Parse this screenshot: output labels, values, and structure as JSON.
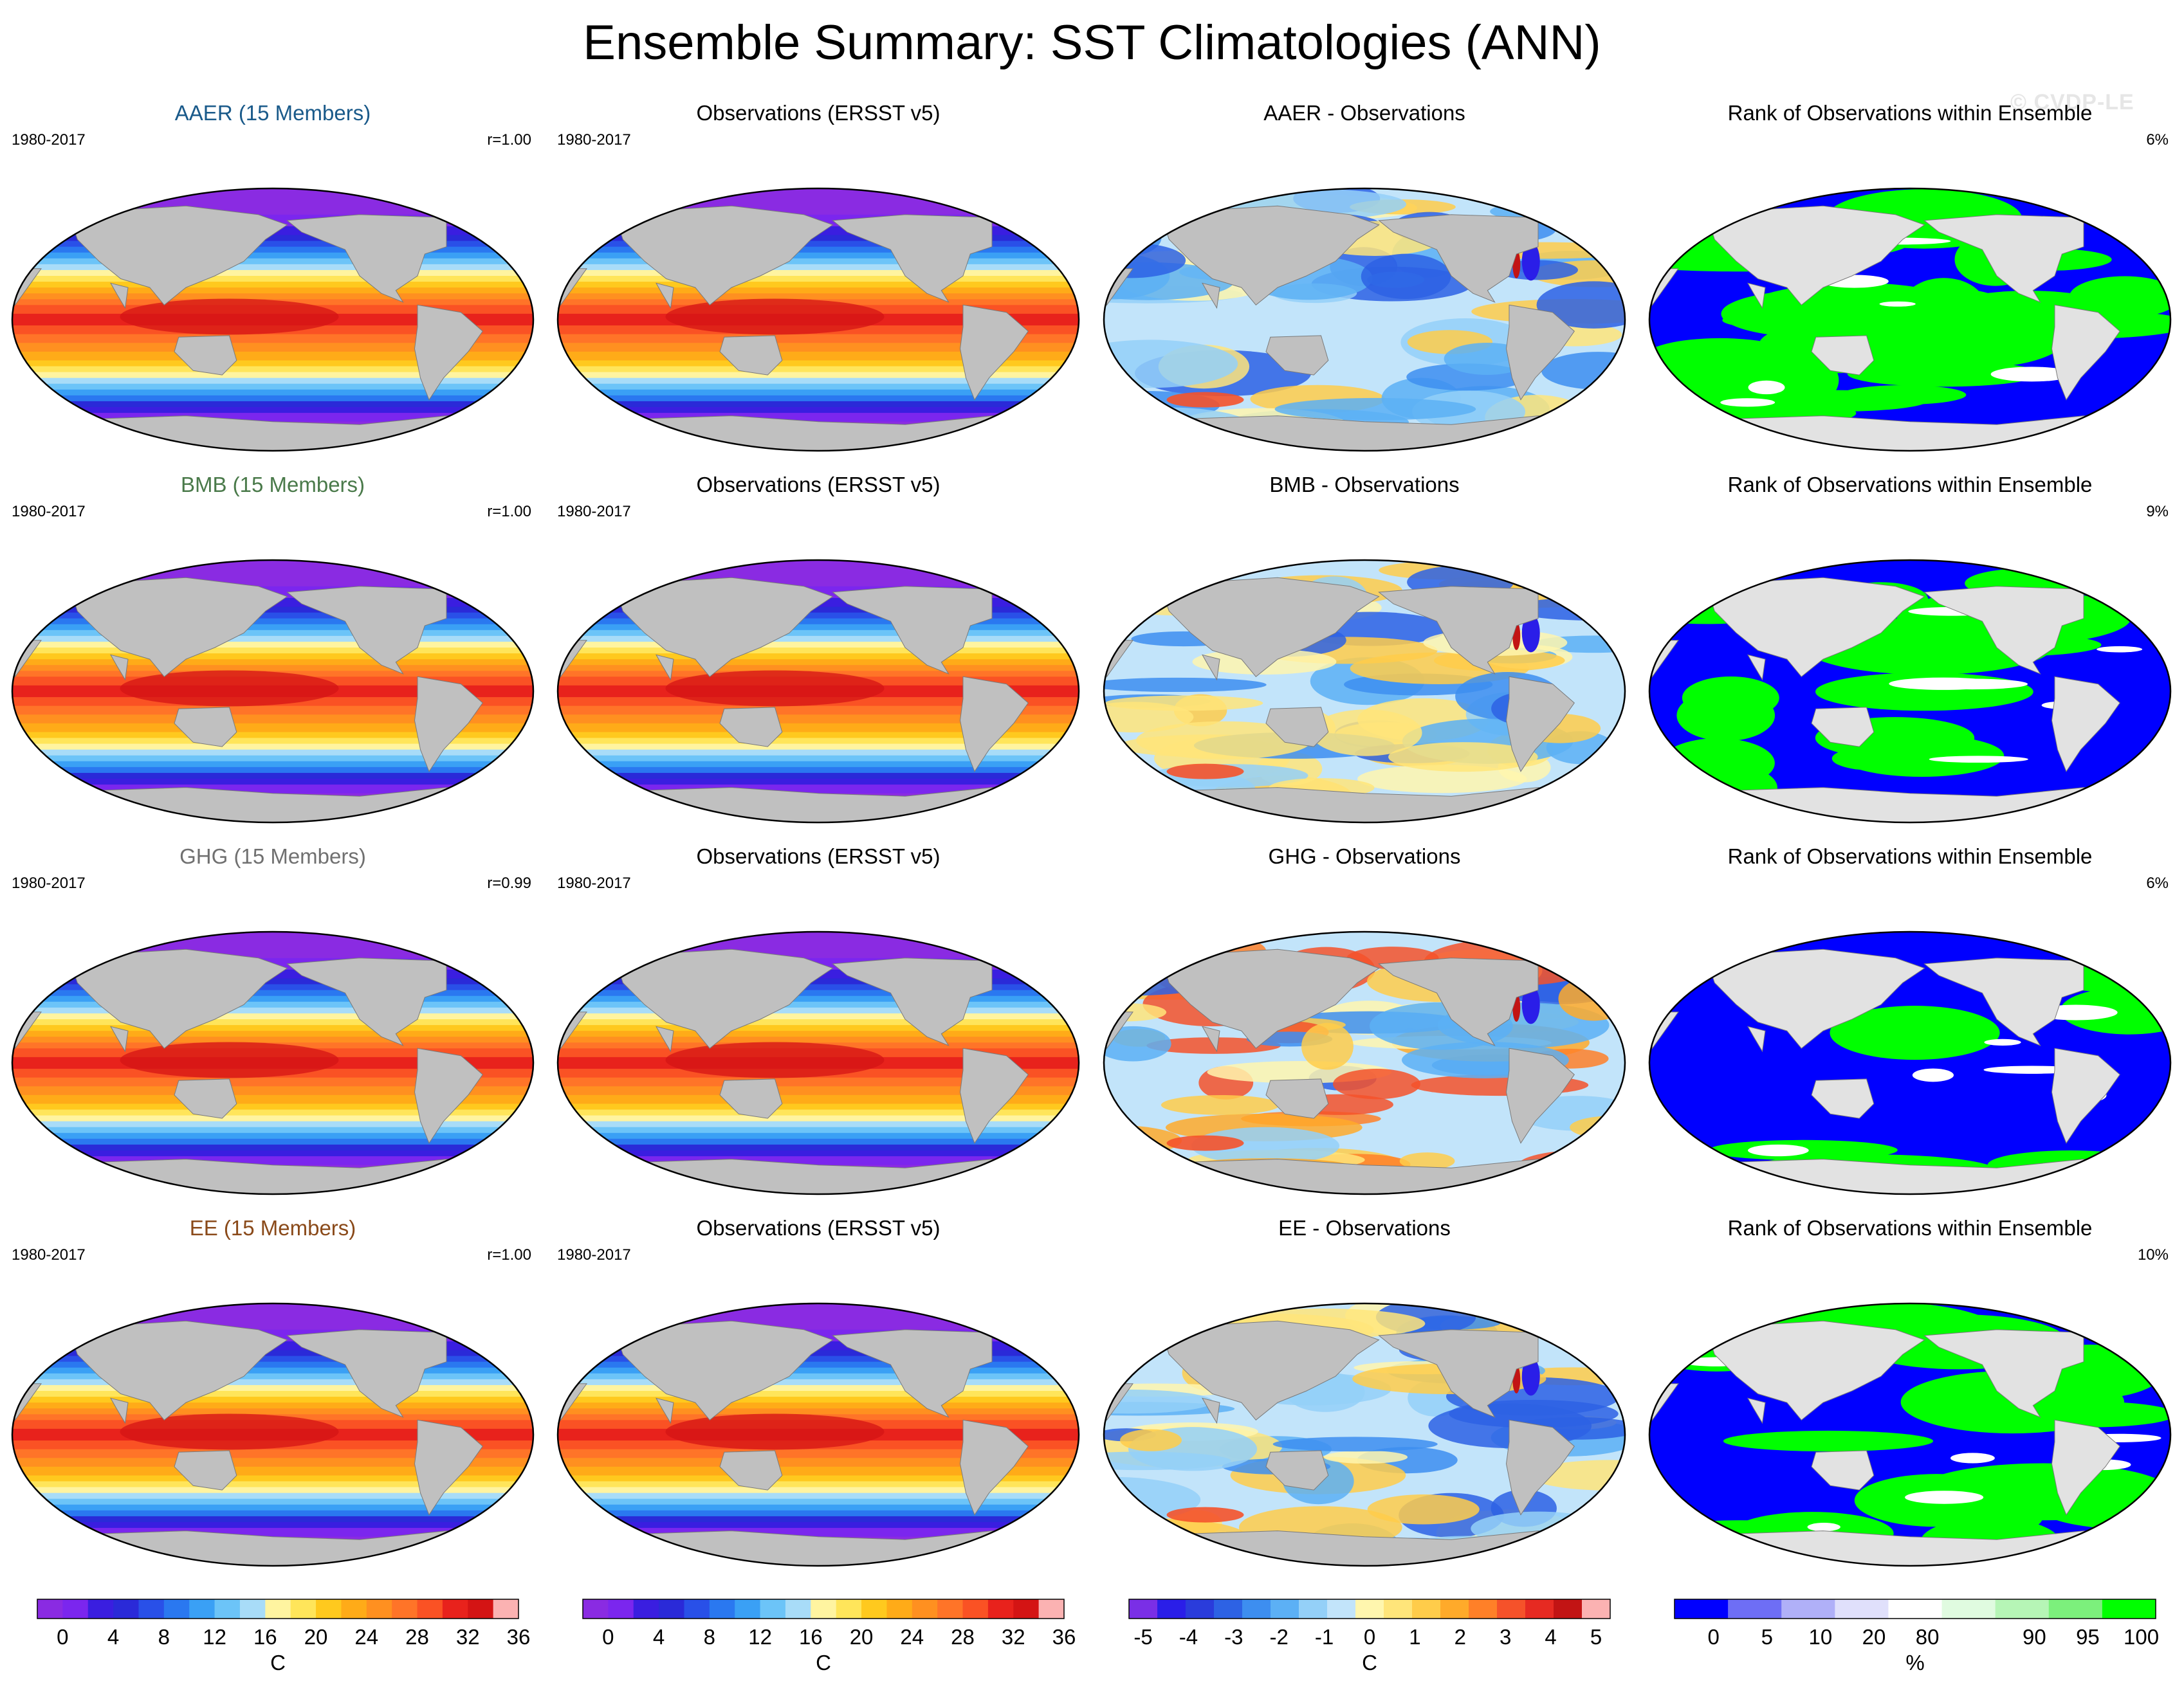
{
  "title": "Ensemble Summary: SST Climatologies (ANN)",
  "watermark": "© CVDP-LE",
  "colors": {
    "land": "#c0c0c0",
    "ice": "#e2e2e2",
    "sst_scale": [
      "#8a2be2",
      "#7b26ee",
      "#3a1ee0",
      "#2a2ad8",
      "#2950e8",
      "#2a78f0",
      "#3aa0f5",
      "#6cc4f8",
      "#a8dcf8",
      "#fff4a0",
      "#ffe55a",
      "#ffc91e",
      "#ffab18",
      "#ff9020",
      "#ff7428",
      "#fa5224",
      "#e8221c",
      "#d41414",
      "#fbb2b2"
    ],
    "diff_scale": [
      "#7a2fe6",
      "#2a1ee8",
      "#2a3cdb",
      "#2d62e4",
      "#3d8ef0",
      "#5cb0f5",
      "#94d0f8",
      "#c2e4fa",
      "#fff6ae",
      "#ffe57a",
      "#ffcc4a",
      "#ffaa2a",
      "#ff8028",
      "#f5522a",
      "#e62a22",
      "#c21414",
      "#fbb2b2"
    ],
    "rank_scale": [
      "#0000ff",
      "#6e6ef5",
      "#b0b0f8",
      "#e0e0fb",
      "#ffffff",
      "#e0fbe0",
      "#b6f5b6",
      "#7cf07c",
      "#00ff00"
    ],
    "model_names": {
      "AAER": "#1a5a8a",
      "BMB": "#4a7a4a",
      "GHG": "#707070",
      "EE": "#8a4a1a"
    }
  },
  "rows": [
    {
      "model": {
        "label": "AAER (15 Members)",
        "period": "1980-2017",
        "corr": "r=1.00"
      },
      "obs": {
        "label": "Observations (ERSST v5)",
        "period": "1980-2017"
      },
      "diff": {
        "label": "AAER - Observations"
      },
      "rank": {
        "label": "Rank of Observations within Ensemble",
        "pct": "6%"
      }
    },
    {
      "model": {
        "label": "BMB (15 Members)",
        "period": "1980-2017",
        "corr": "r=1.00"
      },
      "obs": {
        "label": "Observations (ERSST v5)",
        "period": "1980-2017"
      },
      "diff": {
        "label": "BMB - Observations"
      },
      "rank": {
        "label": "Rank of Observations within Ensemble",
        "pct": "9%"
      }
    },
    {
      "model": {
        "label": "GHG (15 Members)",
        "period": "1980-2017",
        "corr": "r=0.99"
      },
      "obs": {
        "label": "Observations (ERSST v5)",
        "period": "1980-2017"
      },
      "diff": {
        "label": "GHG - Observations"
      },
      "rank": {
        "label": "Rank of Observations within Ensemble",
        "pct": "6%"
      }
    },
    {
      "model": {
        "label": "EE (15 Members)",
        "period": "1980-2017",
        "corr": "r=1.00"
      },
      "obs": {
        "label": "Observations (ERSST v5)",
        "period": "1980-2017"
      },
      "diff": {
        "label": "EE - Observations"
      },
      "rank": {
        "label": "Rank of Observations within Ensemble",
        "pct": "10%"
      }
    }
  ],
  "colorbars": {
    "sst": {
      "ticks": [
        "0",
        "4",
        "8",
        "12",
        "16",
        "20",
        "24",
        "28",
        "32",
        "36"
      ],
      "unit": "C"
    },
    "diff": {
      "ticks": [
        "-5",
        "-4",
        "-3",
        "-2",
        "-1",
        "0",
        "1",
        "2",
        "3",
        "4",
        "5"
      ],
      "unit": "C"
    },
    "rank": {
      "ticks": [
        "0",
        "5",
        "10",
        "20",
        "80",
        "90",
        "95",
        "100"
      ],
      "unit": "%"
    }
  }
}
